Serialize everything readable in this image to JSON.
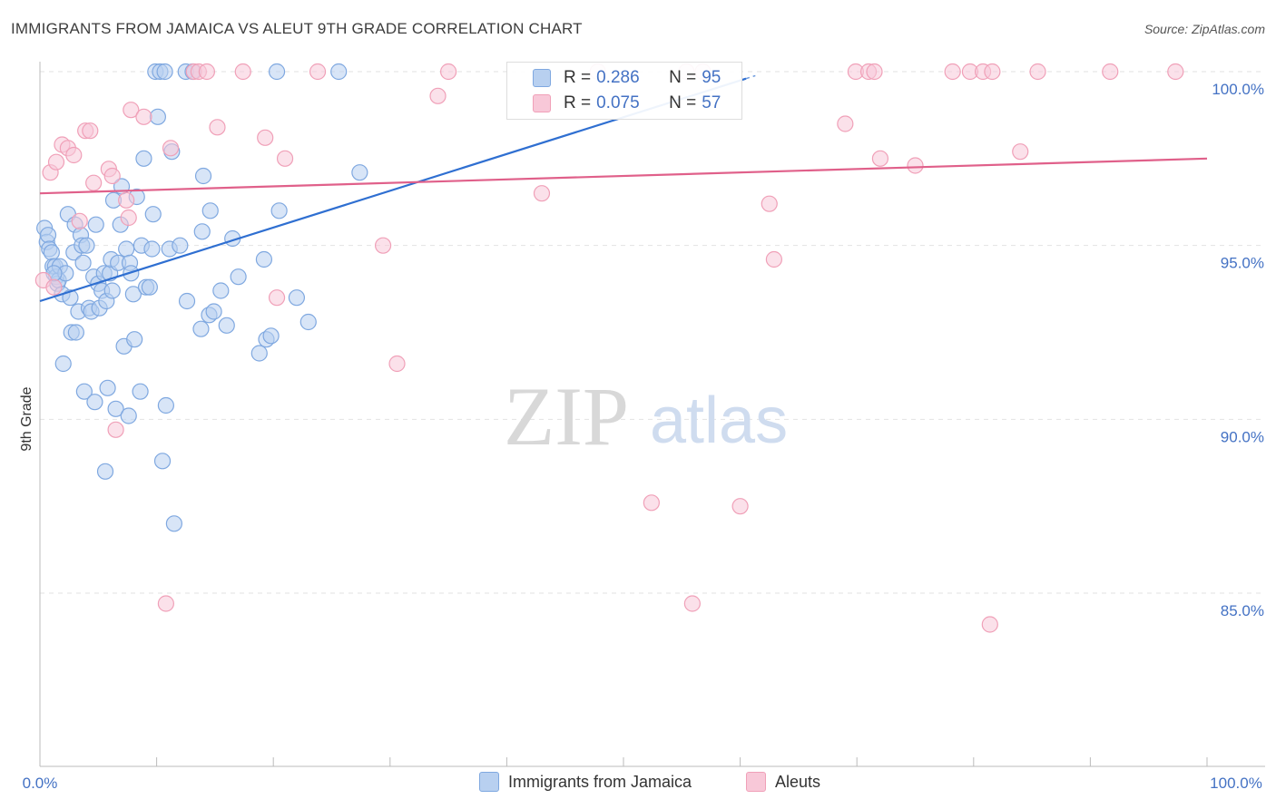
{
  "title": "IMMIGRANTS FROM JAMAICA VS ALEUT 9TH GRADE CORRELATION CHART",
  "source": "Source: ZipAtlas.com",
  "watermark": {
    "zip": "ZIP",
    "atlas": "atlas"
  },
  "legend": {
    "r_label": "R =",
    "n_label": "N =",
    "series": [
      {
        "name": "Immigrants from Jamaica",
        "r": "0.286",
        "n": "95",
        "color": "#7fa8e0",
        "fill": "#b8d0f0",
        "line": "#2f6fd1"
      },
      {
        "name": "Aleuts",
        "r": "0.075",
        "n": "57",
        "color": "#f0a0b8",
        "fill": "#f8c8d8",
        "line": "#e0608a"
      }
    ]
  },
  "chart_data": {
    "type": "scatter",
    "title": "IMMIGRANTS FROM JAMAICA VS ALEUT 9TH GRADE CORRELATION CHART",
    "xlabel": "",
    "ylabel": "9th Grade",
    "xlim": [
      0,
      100
    ],
    "ylim": [
      80.5,
      100.8
    ],
    "x_tick_labels": [
      "0.0%",
      "100.0%"
    ],
    "y_ticks": [
      100,
      95,
      90,
      85
    ],
    "y_tick_labels": [
      "100.0%",
      "95.0%",
      "90.0%",
      "85.0%"
    ],
    "series": [
      {
        "name": "Immigrants from Jamaica",
        "trend": {
          "x0": 0,
          "y0": 93.4,
          "x1": 60.5,
          "y1": 99.8,
          "dashed_to_x": 61.3
        },
        "points": [
          [
            0.4,
            95.5
          ],
          [
            0.6,
            95.1
          ],
          [
            0.7,
            95.3
          ],
          [
            0.8,
            94.9
          ],
          [
            1.0,
            94.8
          ],
          [
            1.1,
            94.4
          ],
          [
            1.3,
            94.4
          ],
          [
            1.4,
            94.1
          ],
          [
            1.5,
            93.9
          ],
          [
            1.6,
            94.0
          ],
          [
            1.7,
            94.4
          ],
          [
            1.9,
            93.6
          ],
          [
            2.0,
            91.6
          ],
          [
            2.2,
            94.2
          ],
          [
            2.4,
            95.9
          ],
          [
            2.6,
            93.5
          ],
          [
            2.7,
            92.5
          ],
          [
            2.9,
            94.8
          ],
          [
            3.0,
            95.6
          ],
          [
            3.1,
            92.5
          ],
          [
            3.3,
            93.1
          ],
          [
            3.5,
            95.3
          ],
          [
            3.6,
            95.0
          ],
          [
            3.7,
            94.5
          ],
          [
            3.8,
            90.8
          ],
          [
            4.0,
            95.0
          ],
          [
            4.2,
            93.2
          ],
          [
            4.4,
            93.1
          ],
          [
            4.6,
            94.1
          ],
          [
            4.7,
            90.5
          ],
          [
            4.8,
            95.6
          ],
          [
            5.0,
            93.9
          ],
          [
            5.1,
            93.2
          ],
          [
            5.3,
            93.7
          ],
          [
            5.5,
            94.2
          ],
          [
            5.6,
            88.5
          ],
          [
            5.7,
            93.4
          ],
          [
            5.8,
            90.9
          ],
          [
            6.0,
            94.2
          ],
          [
            6.1,
            94.6
          ],
          [
            6.2,
            93.7
          ],
          [
            6.3,
            96.3
          ],
          [
            6.5,
            90.3
          ],
          [
            6.7,
            94.5
          ],
          [
            6.9,
            95.6
          ],
          [
            7.0,
            96.7
          ],
          [
            7.2,
            92.1
          ],
          [
            7.4,
            94.9
          ],
          [
            7.6,
            90.1
          ],
          [
            7.7,
            94.5
          ],
          [
            7.8,
            94.2
          ],
          [
            8.0,
            93.6
          ],
          [
            8.1,
            92.3
          ],
          [
            8.3,
            96.4
          ],
          [
            8.6,
            90.8
          ],
          [
            8.7,
            95.0
          ],
          [
            8.9,
            97.5
          ],
          [
            9.1,
            93.8
          ],
          [
            9.4,
            93.8
          ],
          [
            9.6,
            94.9
          ],
          [
            9.7,
            95.9
          ],
          [
            9.9,
            100.0
          ],
          [
            10.1,
            98.7
          ],
          [
            10.3,
            100.0
          ],
          [
            10.5,
            88.8
          ],
          [
            10.7,
            100.0
          ],
          [
            10.8,
            90.4
          ],
          [
            11.1,
            94.9
          ],
          [
            11.3,
            97.7
          ],
          [
            11.5,
            87.0
          ],
          [
            12.0,
            95.0
          ],
          [
            12.5,
            100.0
          ],
          [
            12.6,
            93.4
          ],
          [
            13.1,
            100.0
          ],
          [
            13.8,
            92.6
          ],
          [
            13.9,
            95.4
          ],
          [
            14.0,
            97.0
          ],
          [
            14.5,
            93.0
          ],
          [
            14.6,
            96.0
          ],
          [
            14.9,
            93.1
          ],
          [
            15.5,
            93.7
          ],
          [
            16.0,
            92.7
          ],
          [
            16.5,
            95.2
          ],
          [
            17.0,
            94.1
          ],
          [
            18.8,
            91.9
          ],
          [
            19.2,
            94.6
          ],
          [
            19.4,
            92.3
          ],
          [
            19.8,
            92.4
          ],
          [
            20.3,
            100.0
          ],
          [
            20.5,
            96.0
          ],
          [
            22.0,
            93.5
          ],
          [
            23.0,
            92.8
          ],
          [
            25.6,
            100.0
          ],
          [
            27.4,
            97.1
          ],
          [
            1.2,
            94.2
          ]
        ]
      },
      {
        "name": "Aleuts",
        "trend": {
          "x0": 0,
          "y0": 96.5,
          "x1": 100,
          "y1": 97.5
        },
        "points": [
          [
            0.3,
            94.0
          ],
          [
            0.9,
            97.1
          ],
          [
            1.2,
            93.8
          ],
          [
            1.4,
            97.4
          ],
          [
            1.9,
            97.9
          ],
          [
            2.4,
            97.8
          ],
          [
            2.9,
            97.6
          ],
          [
            3.4,
            95.7
          ],
          [
            3.9,
            98.3
          ],
          [
            4.3,
            98.3
          ],
          [
            4.6,
            96.8
          ],
          [
            5.9,
            97.2
          ],
          [
            6.2,
            97.0
          ],
          [
            6.5,
            89.7
          ],
          [
            7.4,
            96.3
          ],
          [
            7.6,
            95.8
          ],
          [
            7.8,
            98.9
          ],
          [
            8.9,
            98.7
          ],
          [
            10.8,
            84.7
          ],
          [
            11.2,
            97.8
          ],
          [
            13.2,
            100.0
          ],
          [
            13.6,
            100.0
          ],
          [
            14.3,
            100.0
          ],
          [
            15.2,
            98.4
          ],
          [
            17.4,
            100.0
          ],
          [
            19.3,
            98.1
          ],
          [
            20.3,
            93.5
          ],
          [
            21.0,
            97.5
          ],
          [
            23.8,
            100.0
          ],
          [
            29.4,
            95.0
          ],
          [
            30.6,
            91.6
          ],
          [
            34.1,
            99.3
          ],
          [
            35.0,
            100.0
          ],
          [
            43.0,
            96.5
          ],
          [
            47.8,
            100.0
          ],
          [
            52.4,
            87.6
          ],
          [
            55.4,
            100.0
          ],
          [
            55.9,
            84.7
          ],
          [
            56.8,
            100.0
          ],
          [
            60.0,
            87.5
          ],
          [
            62.5,
            96.2
          ],
          [
            62.9,
            94.6
          ],
          [
            69.0,
            98.5
          ],
          [
            69.9,
            100.0
          ],
          [
            71.0,
            100.0
          ],
          [
            71.5,
            100.0
          ],
          [
            72.0,
            97.5
          ],
          [
            75.0,
            97.3
          ],
          [
            78.2,
            100.0
          ],
          [
            79.7,
            100.0
          ],
          [
            80.8,
            100.0
          ],
          [
            81.4,
            84.1
          ],
          [
            81.6,
            100.0
          ],
          [
            84.0,
            97.7
          ],
          [
            85.5,
            100.0
          ],
          [
            91.7,
            100.0
          ],
          [
            97.3,
            100.0
          ]
        ]
      }
    ]
  }
}
